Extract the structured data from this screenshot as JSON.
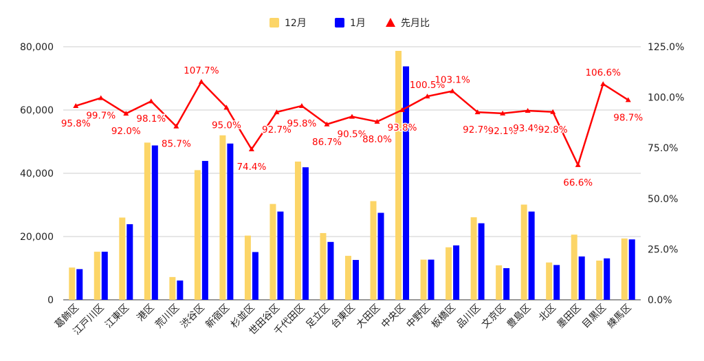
{
  "chart_data": {
    "type": "bar",
    "categories": [
      "葛飾区",
      "江戸川区",
      "江東区",
      "港区",
      "荒川区",
      "渋谷区",
      "新宿区",
      "杉並区",
      "世田谷区",
      "千代田区",
      "足立区",
      "台東区",
      "大田区",
      "中央区",
      "中野区",
      "板橋区",
      "品川区",
      "文京区",
      "豊島区",
      "北区",
      "墨田区",
      "目黒区",
      "練馬区"
    ],
    "series": [
      {
        "name": "12月",
        "type": "bar",
        "axis": "left",
        "color": "#fcd567",
        "values": [
          10200,
          15200,
          26000,
          49700,
          7200,
          41000,
          52000,
          20300,
          30300,
          43700,
          21100,
          13900,
          31200,
          78700,
          12700,
          16600,
          26100,
          10900,
          30100,
          11800,
          20600,
          12400,
          19400
        ]
      },
      {
        "name": "1月",
        "type": "bar",
        "axis": "left",
        "color": "#0000ff",
        "values": [
          9700,
          15200,
          23900,
          48800,
          6100,
          43900,
          49400,
          15100,
          27900,
          41900,
          18300,
          12600,
          27500,
          73800,
          12700,
          17200,
          24200,
          10000,
          27900,
          11000,
          13700,
          13100,
          19100
        ]
      },
      {
        "name": "先月比",
        "type": "line",
        "axis": "right",
        "color": "#ff0000",
        "marker": "triangle",
        "values": [
          95.8,
          99.7,
          92.0,
          98.1,
          85.7,
          107.7,
          95.0,
          74.4,
          92.7,
          95.8,
          86.7,
          90.5,
          88.0,
          93.8,
          100.5,
          103.1,
          92.7,
          92.1,
          93.4,
          92.8,
          66.6,
          106.6,
          98.7
        ],
        "labels": [
          "95.8%",
          "99.7%",
          "92.0%",
          "98.1%",
          "85.7%",
          "107.7%",
          "95.0%",
          "74.4%",
          "92.7%",
          "95.8%",
          "86.7%",
          "90.5%",
          "88.0%",
          "93.8%",
          "100.5%",
          "103.1%",
          "92.7%",
          "92.1%",
          "93.4%",
          "92.8%",
          "66.6%",
          "106.6%",
          "98.7%"
        ]
      }
    ],
    "y_left": {
      "min": 0,
      "max": 80000,
      "ticks": [
        "0",
        "20,000",
        "40,000",
        "60,000",
        "80,000"
      ]
    },
    "y_right": {
      "min": 0,
      "max": 125,
      "ticks": [
        "0.0%",
        "25.0%",
        "50.0%",
        "75.0%",
        "100.0%",
        "125.0%"
      ]
    },
    "grid": true,
    "legend_position": "top"
  }
}
